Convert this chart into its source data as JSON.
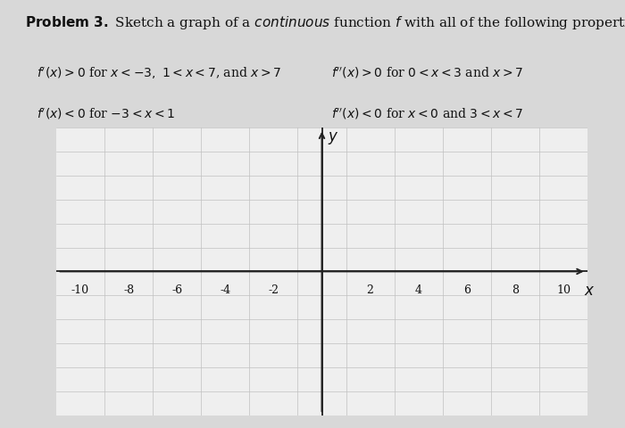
{
  "line1_left": "f'(x) > 0 for x < -3, 1 < x < 7, and x > 7",
  "line2_left": "f'(x) < 0 for -3 < x < 1",
  "line1_right": "f''(x) > 0 for 0 < x < 3 and x > 7",
  "line2_right": "f''(x) < 0 for x < 0 and 3 < x < 7",
  "xlabel": "x",
  "ylabel": "y",
  "xmin": -11,
  "xmax": 11,
  "ymin": -6,
  "ymax": 6,
  "xticks": [
    -10,
    -8,
    -6,
    -4,
    -2,
    2,
    4,
    6,
    8,
    10
  ],
  "grid_color": "#c0c0c0",
  "background_color": "#d8d8d8",
  "plot_bg_color": "#efefef",
  "axis_color": "#222222",
  "text_color": "#111111",
  "font_size_title": 11,
  "font_size_labels": 10,
  "font_size_tick": 9
}
